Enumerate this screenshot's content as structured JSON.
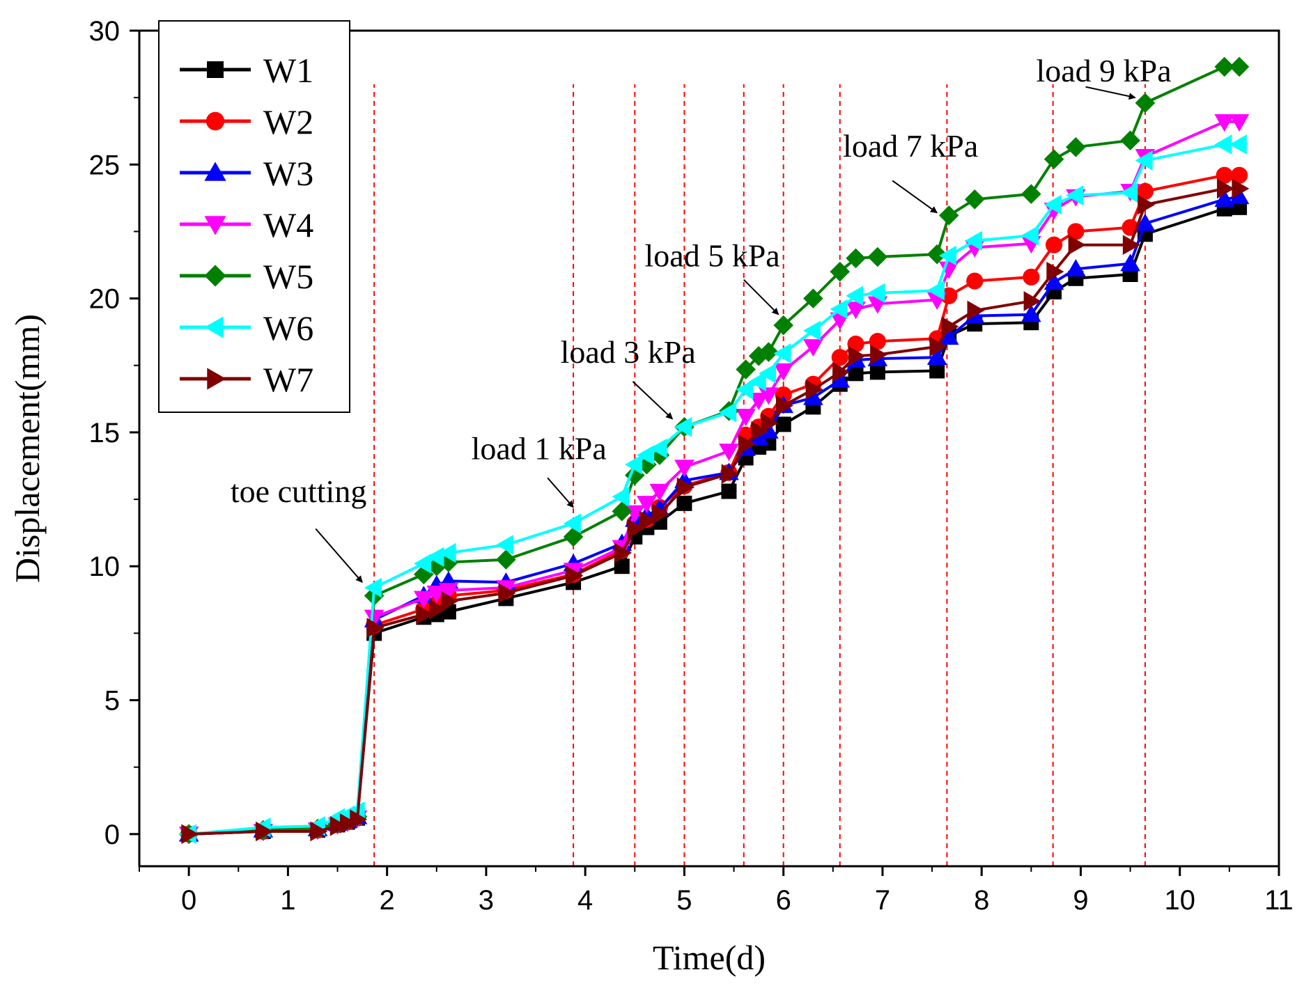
{
  "chart_data": {
    "type": "line",
    "title": "",
    "xlabel": "Time(d)",
    "ylabel": "Displacement(mm)",
    "xlim": [
      -0.5,
      11
    ],
    "ylim": [
      -1.2,
      30
    ],
    "xticks": [
      0,
      1,
      2,
      3,
      4,
      5,
      6,
      7,
      8,
      9,
      10,
      11
    ],
    "yticks": [
      0,
      5,
      10,
      15,
      20,
      25,
      30
    ],
    "grid": false,
    "legend_position": "top-left",
    "x": [
      0,
      0.75,
      1.3,
      1.5,
      1.6,
      1.7,
      1.87,
      2.37,
      2.5,
      2.62,
      3.2,
      3.88,
      4.37,
      4.5,
      4.62,
      4.75,
      5.0,
      5.45,
      5.62,
      5.75,
      5.85,
      6.0,
      6.3,
      6.57,
      6.73,
      6.95,
      7.55,
      7.67,
      7.93,
      8.5,
      8.73,
      8.95,
      9.5,
      9.65,
      10.45,
      10.6
    ],
    "series": [
      {
        "name": "W1",
        "color": "#000000",
        "marker": "square",
        "values": [
          0,
          0.1,
          0.15,
          0.35,
          0.45,
          0.6,
          7.5,
          8.1,
          8.2,
          8.3,
          8.8,
          9.4,
          10.0,
          11.1,
          11.45,
          11.65,
          12.35,
          12.8,
          14.05,
          14.45,
          14.6,
          15.3,
          15.95,
          16.8,
          17.2,
          17.25,
          17.3,
          18.6,
          19.05,
          19.1,
          20.25,
          20.75,
          20.9,
          22.4,
          23.35,
          23.4
        ]
      },
      {
        "name": "W2",
        "color": "#ff0000",
        "marker": "circle",
        "values": [
          0,
          0.1,
          0.15,
          0.35,
          0.45,
          0.6,
          7.8,
          8.4,
          8.6,
          8.9,
          9.1,
          9.7,
          10.6,
          11.6,
          11.75,
          12.2,
          13.0,
          13.5,
          14.9,
          15.2,
          15.6,
          16.4,
          16.8,
          17.8,
          18.3,
          18.4,
          18.5,
          20.1,
          20.65,
          20.8,
          22.0,
          22.5,
          22.65,
          24.0,
          24.6,
          24.6
        ]
      },
      {
        "name": "W3",
        "color": "#0000ff",
        "marker": "triangle-up",
        "values": [
          0,
          0.15,
          0.2,
          0.4,
          0.5,
          0.65,
          8.0,
          8.9,
          9.3,
          9.45,
          9.4,
          10.1,
          10.85,
          11.75,
          11.9,
          12.15,
          13.2,
          13.5,
          14.4,
          14.8,
          15.05,
          16.0,
          16.3,
          16.95,
          17.7,
          17.75,
          17.8,
          18.55,
          19.35,
          19.4,
          20.6,
          21.1,
          21.3,
          22.8,
          23.7,
          23.8
        ]
      },
      {
        "name": "W4",
        "color": "#ff00ff",
        "marker": "triangle-down",
        "values": [
          0,
          0.1,
          0.15,
          0.35,
          0.45,
          0.6,
          8.1,
          8.8,
          9.0,
          9.1,
          9.2,
          9.85,
          10.7,
          12.0,
          12.35,
          12.8,
          13.7,
          14.3,
          15.6,
          16.2,
          16.4,
          17.3,
          18.2,
          19.2,
          19.6,
          19.8,
          19.95,
          21.1,
          21.9,
          22.05,
          23.3,
          23.8,
          24.0,
          25.3,
          26.6,
          26.6
        ]
      },
      {
        "name": "W5",
        "color": "#008000",
        "marker": "diamond",
        "values": [
          0,
          0.15,
          0.2,
          0.4,
          0.5,
          0.65,
          8.9,
          9.7,
          10.0,
          10.15,
          10.25,
          11.1,
          12.05,
          13.4,
          13.8,
          14.15,
          15.2,
          15.8,
          17.35,
          17.85,
          18.0,
          19.0,
          20.0,
          21.0,
          21.5,
          21.55,
          21.65,
          23.1,
          23.7,
          23.9,
          25.2,
          25.65,
          25.9,
          27.3,
          28.65,
          28.65
        ]
      },
      {
        "name": "W6",
        "color": "#00ffff",
        "marker": "triangle-left",
        "values": [
          0,
          0.25,
          0.3,
          0.6,
          0.7,
          0.85,
          9.2,
          10.1,
          10.35,
          10.5,
          10.8,
          11.6,
          12.6,
          13.8,
          14.15,
          14.4,
          15.2,
          15.75,
          16.6,
          16.9,
          17.2,
          17.95,
          18.8,
          19.6,
          20.1,
          20.2,
          20.3,
          21.6,
          22.15,
          22.35,
          23.5,
          23.85,
          23.95,
          25.15,
          25.75,
          25.75
        ]
      },
      {
        "name": "W7",
        "color": "#800000",
        "marker": "triangle-right",
        "values": [
          0,
          0.1,
          0.1,
          0.3,
          0.4,
          0.55,
          7.7,
          8.2,
          8.4,
          8.7,
          9.0,
          9.65,
          10.5,
          11.4,
          11.7,
          11.95,
          12.95,
          13.45,
          14.55,
          15.05,
          15.35,
          16.0,
          16.6,
          17.25,
          17.85,
          17.9,
          18.2,
          18.95,
          19.55,
          19.9,
          21.0,
          22.0,
          22.0,
          23.5,
          24.1,
          24.1
        ]
      }
    ],
    "stage_lines": [
      1.87,
      3.88,
      4.5,
      5.0,
      5.6,
      6.0,
      6.57,
      7.65,
      8.72,
      9.65
    ],
    "annotations": [
      {
        "text": "toe cutting",
        "text_x": 0.42,
        "text_y": 12.4,
        "arrow_from": [
          1.28,
          11.4
        ],
        "arrow_to": [
          1.75,
          9.4
        ]
      },
      {
        "text": "load 1 kPa",
        "text_x": 2.85,
        "text_y": 14.0,
        "arrow_from": [
          3.62,
          13.3
        ],
        "arrow_to": [
          3.88,
          12.2
        ]
      },
      {
        "text": "load 3 kPa",
        "text_x": 3.75,
        "text_y": 17.6,
        "arrow_from": [
          4.48,
          16.9
        ],
        "arrow_to": [
          4.88,
          15.5
        ]
      },
      {
        "text": "load 5 kPa",
        "text_x": 4.6,
        "text_y": 21.2,
        "arrow_from": [
          5.6,
          20.7
        ],
        "arrow_to": [
          5.95,
          19.4
        ]
      },
      {
        "text": "load 7 kPa",
        "text_x": 6.6,
        "text_y": 25.3,
        "arrow_from": [
          7.1,
          24.4
        ],
        "arrow_to": [
          7.55,
          23.2
        ]
      },
      {
        "text": "load 9 kPa",
        "text_x": 8.55,
        "text_y": 28.1,
        "arrow_from": [
          9.05,
          27.9
        ],
        "arrow_to": [
          9.55,
          27.5
        ]
      }
    ]
  }
}
